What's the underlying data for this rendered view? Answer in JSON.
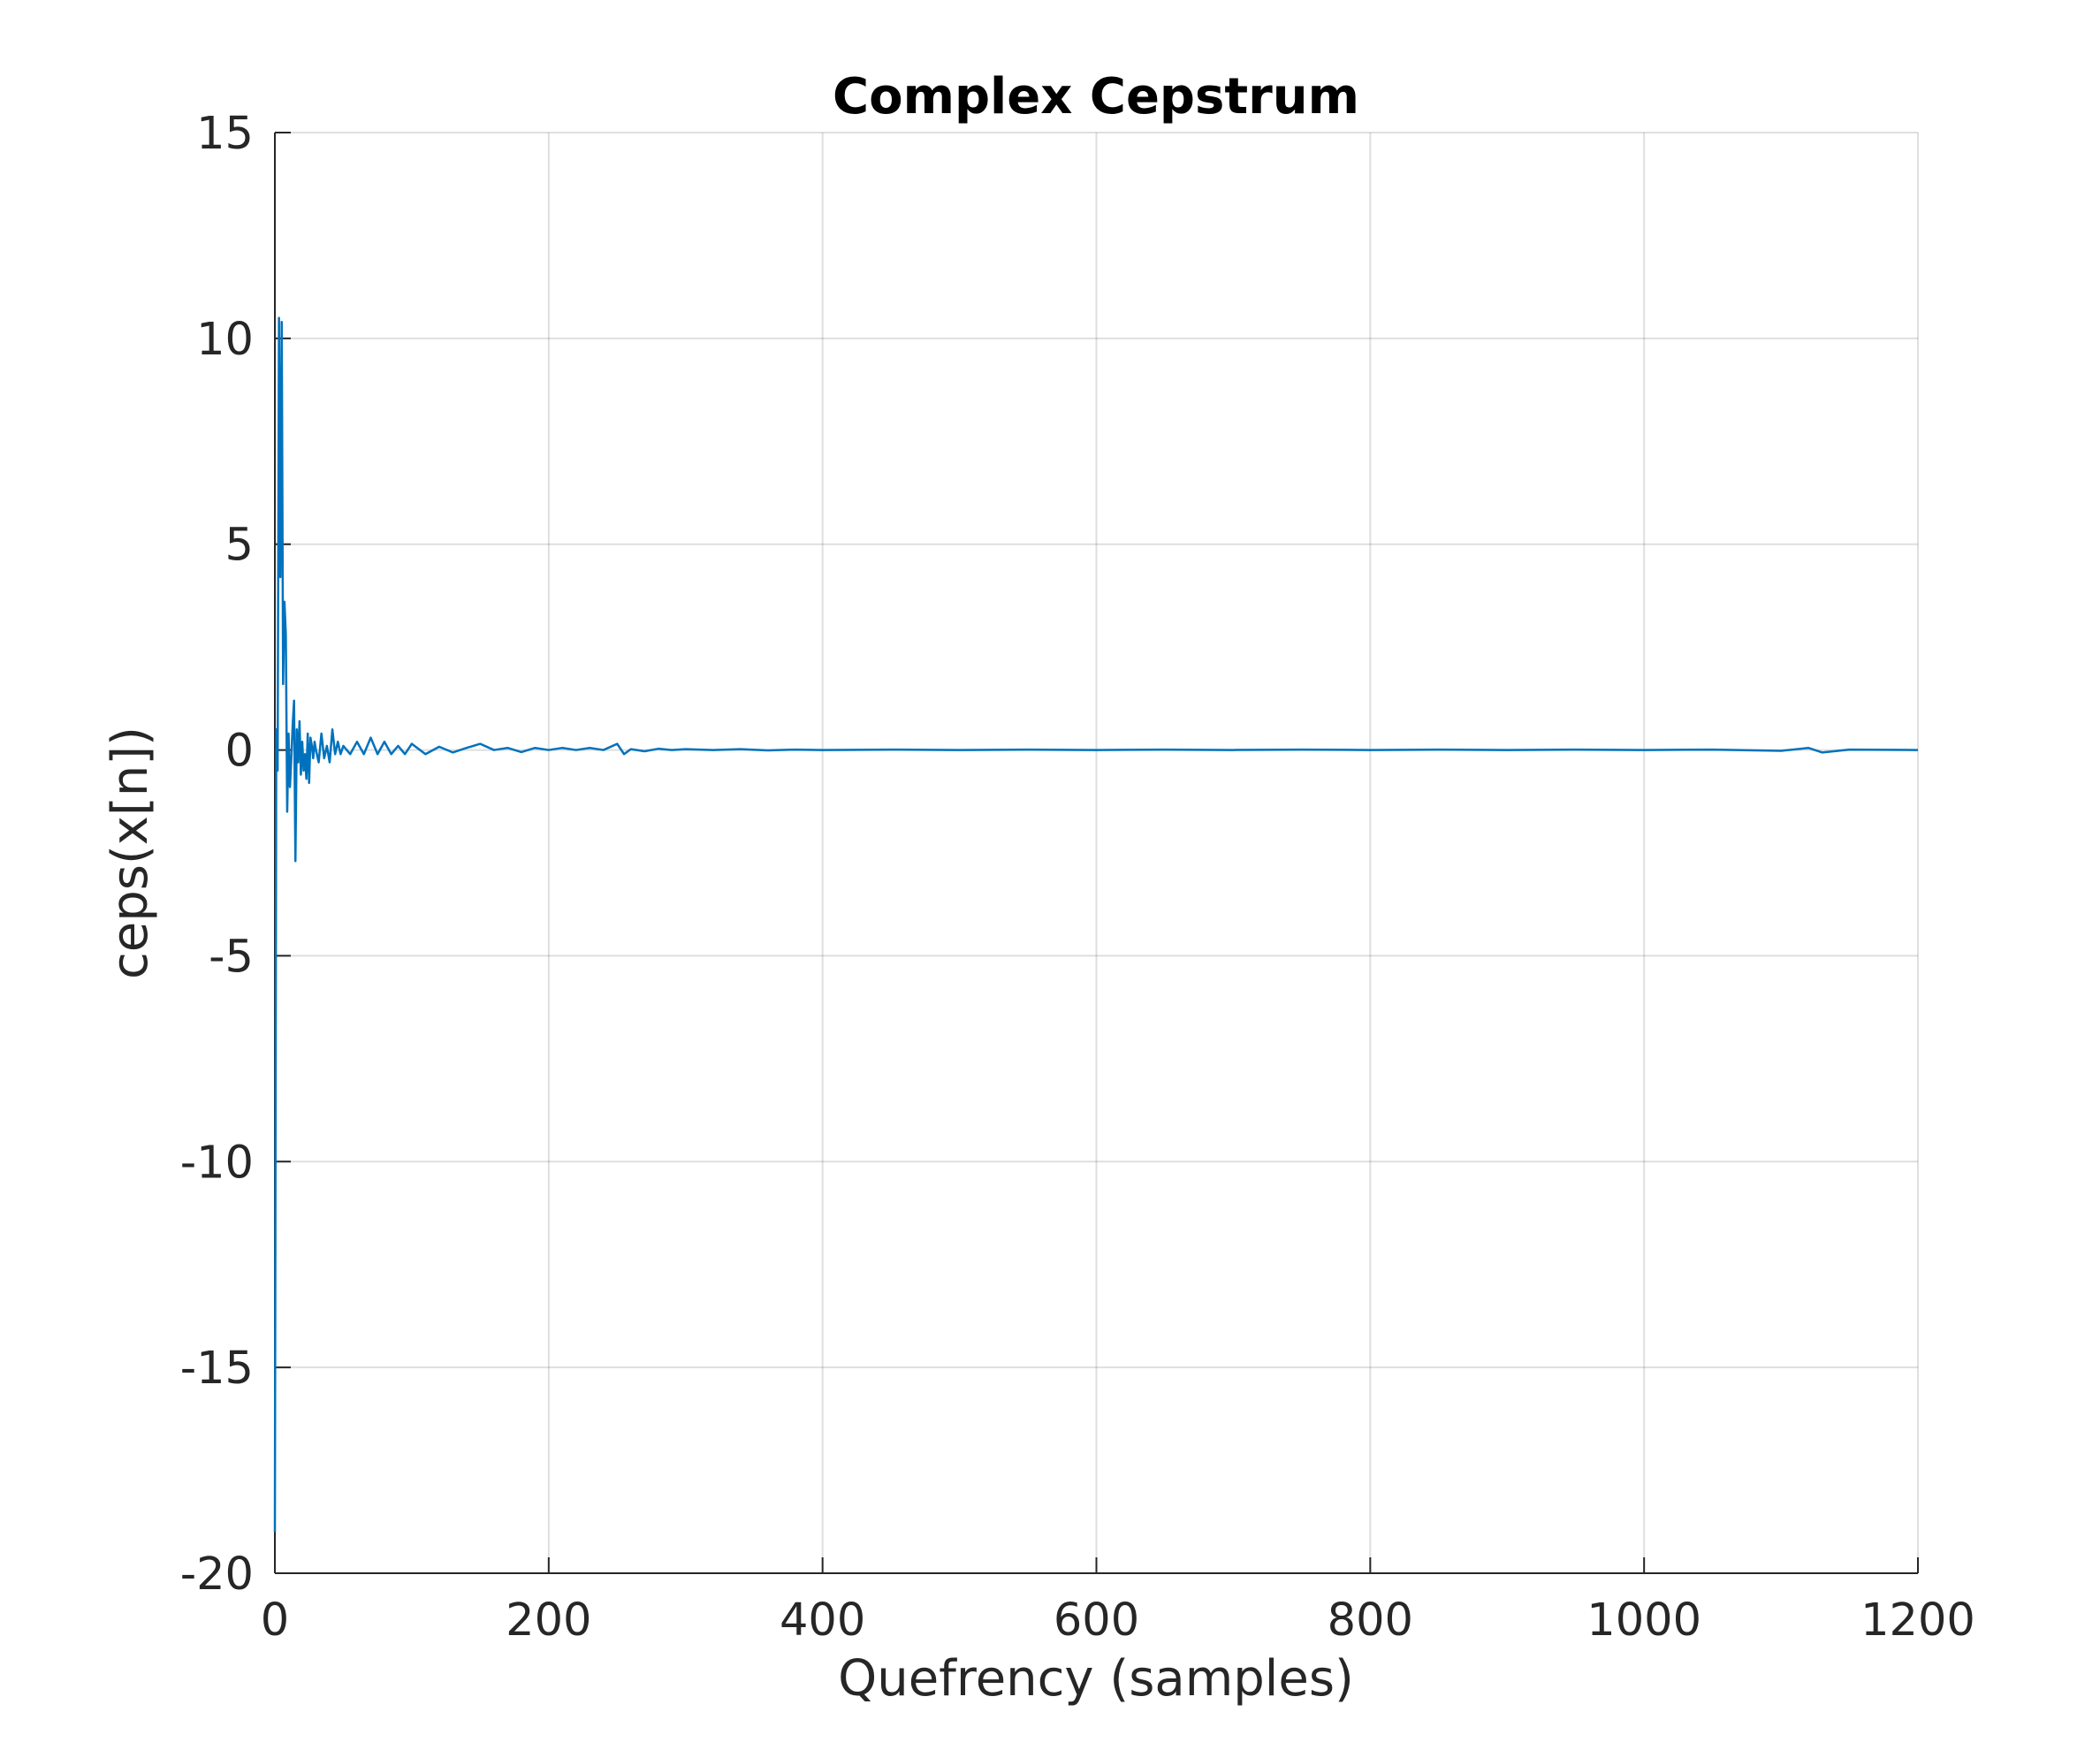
{
  "chart_data": {
    "type": "line",
    "title": "Complex Cepstrum",
    "xlabel": "Quefrency (samples)",
    "ylabel": "ceps(x[n])",
    "xlim": [
      0,
      1200
    ],
    "ylim": [
      -20,
      15
    ],
    "xticks": [
      0,
      200,
      400,
      600,
      800,
      1000,
      1200
    ],
    "yticks": [
      -20,
      -15,
      -10,
      -5,
      0,
      5,
      10,
      15
    ],
    "xtick_labels": [
      "0",
      "200",
      "400",
      "600",
      "800",
      "1000",
      "1200"
    ],
    "ytick_labels": [
      "-20",
      "-15",
      "-10",
      "-5",
      "0",
      "5",
      "10",
      "15"
    ],
    "grid": true,
    "series": [
      {
        "color": "#0072BD",
        "x": [
          0,
          1,
          2,
          3,
          4,
          5,
          6,
          7,
          8,
          9,
          10,
          11,
          12,
          13,
          14,
          15,
          16,
          17,
          18,
          19,
          20,
          21,
          22,
          23,
          24,
          25,
          26,
          27,
          28,
          29,
          30,
          32,
          34,
          36,
          38,
          40,
          42,
          44,
          46,
          48,
          50,
          55,
          60,
          65,
          70,
          75,
          80,
          85,
          90,
          95,
          100,
          110,
          120,
          130,
          140,
          150,
          160,
          170,
          180,
          190,
          200,
          210,
          220,
          230,
          240,
          250,
          255,
          260,
          270,
          280,
          290,
          300,
          320,
          340,
          360,
          380,
          400,
          450,
          500,
          550,
          600,
          650,
          700,
          750,
          800,
          850,
          900,
          950,
          1000,
          1050,
          1100,
          1120,
          1130,
          1150,
          1200
        ],
        "y": [
          -19.0,
          0.5,
          -0.5,
          10.5,
          4.2,
          10.4,
          1.6,
          3.6,
          2.8,
          -1.5,
          0.4,
          -0.9,
          -0.2,
          0.6,
          1.2,
          -2.7,
          0.5,
          -0.3,
          0.7,
          -0.6,
          0.2,
          -0.5,
          -0.1,
          -0.7,
          0.4,
          -0.8,
          0.3,
          0.1,
          -0.2,
          0.2,
          0.0,
          -0.3,
          0.4,
          -0.2,
          0.1,
          -0.3,
          0.5,
          -0.1,
          0.2,
          -0.1,
          0.1,
          -0.1,
          0.2,
          -0.1,
          0.3,
          -0.1,
          0.2,
          -0.1,
          0.1,
          -0.1,
          0.15,
          -0.1,
          0.08,
          -0.06,
          0.05,
          0.15,
          0.0,
          0.05,
          -0.05,
          0.05,
          0.0,
          0.05,
          0.0,
          0.05,
          0.0,
          0.15,
          -0.1,
          0.02,
          -0.03,
          0.03,
          0.0,
          0.02,
          0.0,
          0.02,
          -0.01,
          0.01,
          0.0,
          0.01,
          0.0,
          0.01,
          0.0,
          0.01,
          0.0,
          0.01,
          0.0,
          0.01,
          0.0,
          0.01,
          0.0,
          0.01,
          -0.02,
          0.05,
          -0.06,
          0.01,
          0.0
        ]
      }
    ]
  }
}
